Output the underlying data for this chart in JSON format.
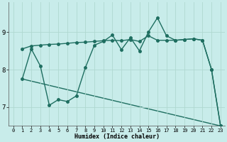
{
  "title": "",
  "xlabel": "Humidex (Indice chaleur)",
  "bg_color": "#c8ecea",
  "grid_color": "#b0d8d0",
  "line_color": "#1e6e60",
  "xlim": [
    -0.5,
    23.5
  ],
  "ylim": [
    6.5,
    9.8
  ],
  "xtick_vals": [
    0,
    1,
    2,
    3,
    4,
    5,
    6,
    7,
    8,
    9,
    10,
    11,
    12,
    13,
    14,
    15,
    16,
    17,
    18,
    19,
    20,
    21,
    22,
    23
  ],
  "ytick_vals": [
    7,
    8,
    9
  ],
  "line1_x": [
    1,
    2,
    3,
    4,
    5,
    6,
    7,
    8,
    9,
    10,
    11,
    12,
    13,
    14,
    15,
    16,
    17,
    18,
    19,
    20,
    21,
    22,
    23
  ],
  "line1_y": [
    8.55,
    8.63,
    8.65,
    8.67,
    8.68,
    8.7,
    8.72,
    8.73,
    8.75,
    8.77,
    8.78,
    8.77,
    8.8,
    8.75,
    8.9,
    8.78,
    8.78,
    8.78,
    8.8,
    8.82,
    8.78,
    8.0,
    6.5
  ],
  "line2_x": [
    1,
    2,
    3,
    4,
    5,
    6,
    7,
    8,
    9,
    10,
    11,
    12,
    13,
    14,
    15,
    16,
    17,
    18,
    19,
    20,
    21,
    22,
    23
  ],
  "line2_y": [
    7.75,
    8.55,
    8.1,
    7.05,
    7.2,
    7.15,
    7.3,
    8.05,
    8.65,
    8.75,
    8.92,
    8.53,
    8.85,
    8.5,
    9.0,
    9.38,
    8.9,
    8.78,
    8.8,
    8.82,
    8.78,
    8.0,
    6.5
  ],
  "line3_x": [
    1,
    23
  ],
  "line3_y": [
    7.75,
    6.5
  ],
  "marker_size": 2.5,
  "linewidth": 1.0
}
